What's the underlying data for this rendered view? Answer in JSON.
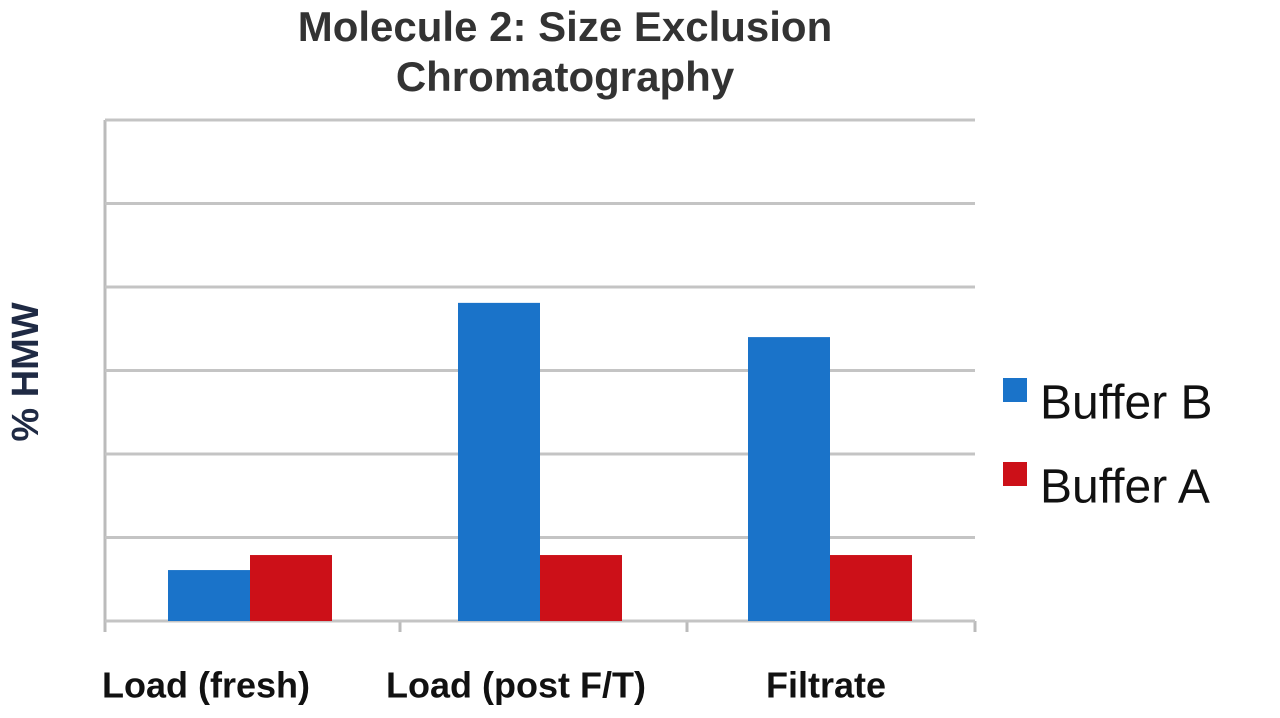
{
  "chart_data": {
    "type": "bar",
    "title": "Molecule 2: Size Exclusion Chromatography",
    "y_label": "% HMW",
    "categories": [
      "Load (fresh)",
      "Load (post F/T)",
      "Filtrate"
    ],
    "series": [
      {
        "name": "Buffer B",
        "color": "#1a73c9",
        "values": [
          0.61,
          3.81,
          3.4
        ]
      },
      {
        "name": "Buffer A",
        "color": "#cc1018",
        "values": [
          0.79,
          0.79,
          0.79
        ]
      }
    ],
    "ylim": [
      0,
      6
    ],
    "yticks": [
      0,
      1,
      2,
      3,
      4,
      5,
      6
    ],
    "grid": true,
    "legend": "right"
  }
}
